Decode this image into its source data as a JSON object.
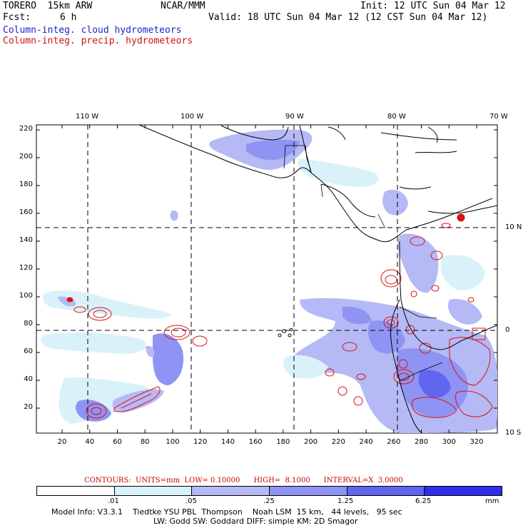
{
  "header": {
    "title_left": "TORERO  15km ARW",
    "center": "NCAR/MMM",
    "init": "Init: 12 UTC Sun 04 Mar 12",
    "fcst_label": "Fcst:",
    "fcst_value": "6 h",
    "valid": "Valid: 18 UTC Sun 04 Mar 12 (12 CST Sun 04 Mar 12)",
    "field1": "Column-integ. cloud hydrometeors",
    "field2": "Column-integ. precip. hydrometeors"
  },
  "map": {
    "top_lon_labels": [
      "110 W",
      "100 W",
      "90 W",
      "80 W",
      "70 W"
    ],
    "right_lat_labels": [
      "10 N",
      "0",
      "10 S"
    ],
    "left_y_ticks": [
      "220",
      "200",
      "180",
      "160",
      "140",
      "120",
      "100",
      "80",
      "60",
      "40",
      "20"
    ],
    "bottom_x_ticks": [
      "20",
      "40",
      "60",
      "80",
      "100",
      "120",
      "140",
      "160",
      "180",
      "200",
      "220",
      "240",
      "260",
      "280",
      "300",
      "320"
    ]
  },
  "contours_line": "CONTOURS:  UNITS=mm  LOW= 0.10000      HIGH=  8.1000      INTERVAL=X  3.0000",
  "legend": {
    "labels": [
      ".01",
      ".05",
      ".25",
      "1.25",
      "6.25"
    ],
    "unit": "mm",
    "colors": [
      "#ffffff",
      "#d9f2f9",
      "#b5b9f5",
      "#8f93f3",
      "#6166f0",
      "#2f2fe8"
    ]
  },
  "model_info": {
    "line1": "Model Info: V3.3.1    Tiedtke YSU PBL  Thompson    Noah LSM  15 km,   44 levels,   95 sec",
    "line2": "LW: Godd SW: Goddard DIFF: simple KM: 2D Smagor"
  }
}
